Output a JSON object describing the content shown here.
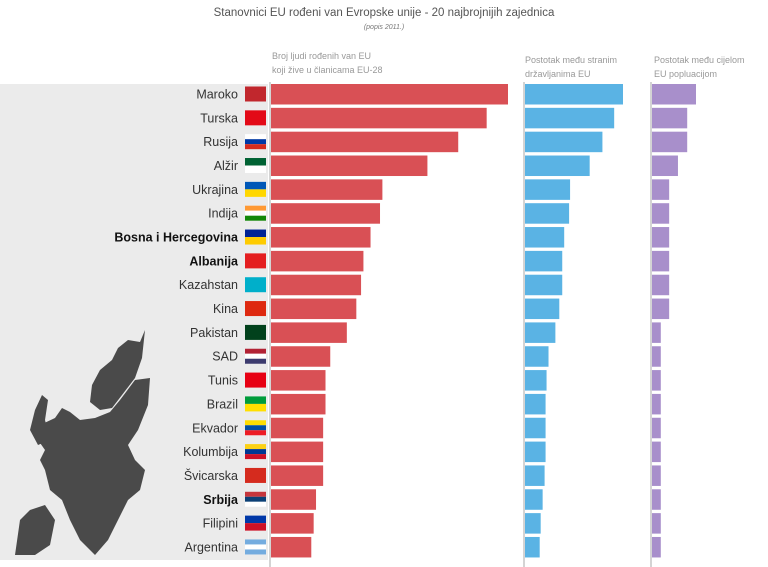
{
  "chart_data": {
    "type": "bar",
    "orientation": "horizontal",
    "title": "Stanovnici EU rođeni van Evropske unije - 20 najbrojnijih zajednica",
    "subtitle": "(popis 2011.)",
    "categories": [
      "Maroko",
      "Turska",
      "Rusija",
      "Alžir",
      "Ukrajina",
      "Indija",
      "Bosna i Hercegovina",
      "Albanija",
      "Kazahstan",
      "Kina",
      "Pakistan",
      "SAD",
      "Tunis",
      "Brazil",
      "Ekvador",
      "Kolumbija",
      "Švicarska",
      "Srbija",
      "Filipini",
      "Argentina"
    ],
    "highlighted": [
      "Bosna i Hercegovina",
      "Albanija",
      "Srbija"
    ],
    "value_note": "relative bar lengths (% of longest bar in each panel); no axis scale printed",
    "series": [
      {
        "name": "Broj ljudi rođenih van EU koji žive u članicama EU-28",
        "name_lines": [
          "Broj ljudi rođenih van EU",
          "koji žive u članicama EU-28"
        ],
        "color": "#d95055",
        "values": [
          100,
          91,
          79,
          66,
          47,
          46,
          42,
          39,
          38,
          36,
          32,
          25,
          23,
          23,
          22,
          22,
          22,
          19,
          18,
          17
        ]
      },
      {
        "name": "Postotak među stranim državljanima EU",
        "name_lines": [
          "Postotak među stranim",
          "državljanima EU"
        ],
        "color": "#5ab3e4",
        "values": [
          100,
          91,
          79,
          66,
          46,
          45,
          40,
          38,
          38,
          35,
          31,
          24,
          22,
          21,
          21,
          21,
          20,
          18,
          16,
          15
        ]
      },
      {
        "name": "Postotak među cijelom EU popluacijom",
        "name_lines": [
          "Postotak među cijelom",
          "EU popluacijom"
        ],
        "color": "#a88fcb",
        "values": [
          100,
          80,
          80,
          59,
          39,
          39,
          39,
          39,
          39,
          39,
          20,
          20,
          20,
          20,
          20,
          20,
          20,
          20,
          20,
          20
        ]
      }
    ],
    "grid": false,
    "legend": "none"
  },
  "flags": [
    [
      "#c1272d"
    ],
    [
      "#e30a17"
    ],
    [
      "#ffffff",
      "#0039a6",
      "#d52b1e"
    ],
    [
      "#006233",
      "#ffffff"
    ],
    [
      "#0057b7",
      "#ffd700"
    ],
    [
      "#ff9933",
      "#ffffff",
      "#138808"
    ],
    [
      "#002395",
      "#fecb00"
    ],
    [
      "#e41e20"
    ],
    [
      "#00afca"
    ],
    [
      "#de2910"
    ],
    [
      "#01411c"
    ],
    [
      "#b22234",
      "#ffffff",
      "#3c3b6e"
    ],
    [
      "#e70013"
    ],
    [
      "#009c3b",
      "#ffdf00"
    ],
    [
      "#ffdd00",
      "#034ea2",
      "#ed1c24"
    ],
    [
      "#fcd116",
      "#003893",
      "#ce1126"
    ],
    [
      "#d52b1e"
    ],
    [
      "#c6363c",
      "#0c4076",
      "#ffffff"
    ],
    [
      "#0038a8",
      "#ce1126"
    ],
    [
      "#74acdf",
      "#ffffff",
      "#74acdf"
    ]
  ],
  "map_icon": "eu-map-silhouette"
}
